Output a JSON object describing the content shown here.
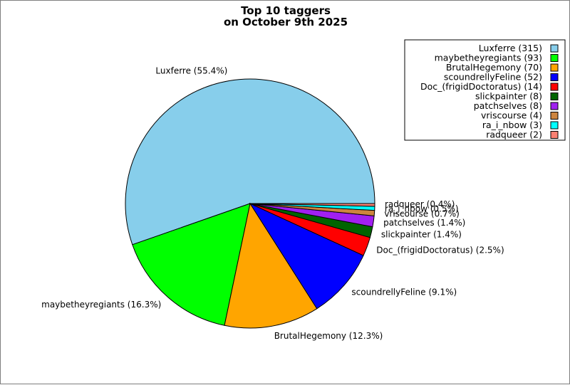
{
  "chart_data": {
    "type": "pie",
    "title_lines": [
      "Top 10 taggers",
      "on October 9th 2025"
    ],
    "legend_position": "top-right",
    "slices": [
      {
        "name": "Luxferre",
        "value": 315,
        "percent_label": "Luxferre (55.4%)",
        "legend_label": "Luxferre (315)",
        "color": "#87ceeb"
      },
      {
        "name": "maybetheyregiants",
        "value": 93,
        "percent_label": "maybetheyregiants (16.3%)",
        "legend_label": "maybetheyregiants (93)",
        "color": "#00ff00"
      },
      {
        "name": "BrutalHegemony",
        "value": 70,
        "percent_label": "BrutalHegemony (12.3%)",
        "legend_label": "BrutalHegemony (70)",
        "color": "#ffa500"
      },
      {
        "name": "scoundrellyFeline",
        "value": 52,
        "percent_label": "scoundrellyFeline (9.1%)",
        "legend_label": "scoundrellyFeline (52)",
        "color": "#0000ff"
      },
      {
        "name": "Doc_(frigidDoctoratus)",
        "value": 14,
        "percent_label": "Doc_(frigidDoctoratus) (2.5%)",
        "legend_label": "Doc_(frigidDoctoratus) (14)",
        "color": "#ff0000"
      },
      {
        "name": "slickpainter",
        "value": 8,
        "percent_label": "slickpainter (1.4%)",
        "legend_label": "slickpainter (8)",
        "color": "#006400"
      },
      {
        "name": "patchselves",
        "value": 8,
        "percent_label": "patchselves (1.4%)",
        "legend_label": "patchselves (8)",
        "color": "#a020f0"
      },
      {
        "name": "vriscourse",
        "value": 4,
        "percent_label": "vriscourse (0.7%)",
        "legend_label": "vriscourse (4)",
        "color": "#cd853f"
      },
      {
        "name": "ra_i_nbow",
        "value": 3,
        "percent_label": "ra_i_nbow (0.5%)",
        "legend_label": "ra_i_nbow (3)",
        "color": "#00ffff"
      },
      {
        "name": "radqueer",
        "value": 2,
        "percent_label": "radqueer (0.4%)",
        "legend_label": "radqueer (2)",
        "color": "#fa8072"
      }
    ]
  }
}
